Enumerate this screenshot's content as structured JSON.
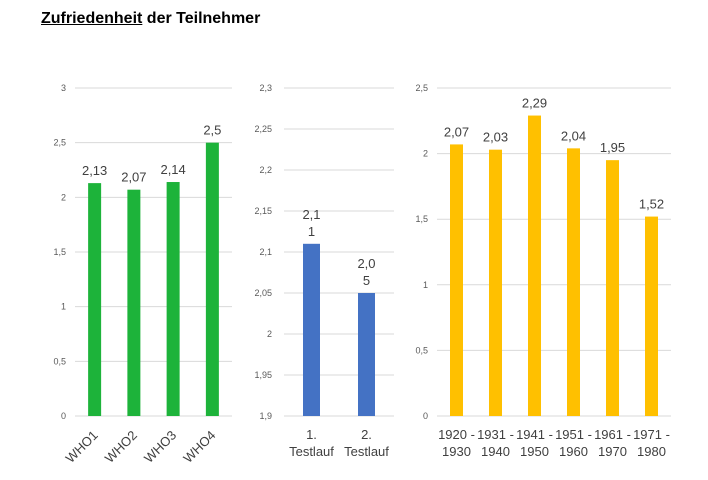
{
  "title": {
    "part1": "Zufriedenheit",
    "part2": " der Teilnehmer"
  },
  "chart_data": [
    {
      "type": "bar",
      "categories": [
        "WHO1",
        "WHO2",
        "WHO3",
        "WHO4"
      ],
      "values": [
        2.13,
        2.07,
        2.14,
        2.5
      ],
      "data_labels": [
        [
          "2,13"
        ],
        [
          "2,07"
        ],
        [
          "2,14"
        ],
        [
          "2,5"
        ]
      ],
      "ylim": [
        0,
        3
      ],
      "yticks": [
        0,
        0.5,
        1,
        1.5,
        2,
        2.5,
        3
      ],
      "ytick_labels": [
        "0",
        "0,5",
        "1",
        "1,5",
        "2",
        "2,5",
        "3"
      ],
      "color": "#1db33a",
      "grid": true,
      "category_rotation": -45
    },
    {
      "type": "bar",
      "categories": [
        [
          "1.",
          "Testlauf"
        ],
        [
          "2.",
          "Testlauf"
        ]
      ],
      "values": [
        2.11,
        2.05
      ],
      "data_labels": [
        [
          "2,1",
          "1"
        ],
        [
          "2,0",
          "5"
        ]
      ],
      "ylim": [
        1.9,
        2.3
      ],
      "yticks": [
        1.9,
        1.95,
        2,
        2.05,
        2.1,
        2.15,
        2.2,
        2.25,
        2.3
      ],
      "ytick_labels": [
        "1,9",
        "1,95",
        "2",
        "2,05",
        "2,1",
        "2,15",
        "2,2",
        "2,25",
        "2,3"
      ],
      "color": "#4472c4",
      "grid": true
    },
    {
      "type": "bar",
      "categories": [
        [
          "1920 -",
          "1930"
        ],
        [
          "1931 -",
          "1940"
        ],
        [
          "1941 -",
          "1950"
        ],
        [
          "1951 -",
          "1960"
        ],
        [
          "1961 -",
          "1970"
        ],
        [
          "1971 -",
          "1980"
        ]
      ],
      "values": [
        2.07,
        2.03,
        2.29,
        2.04,
        1.95,
        1.52
      ],
      "data_labels": [
        [
          "2,07"
        ],
        [
          "2,03"
        ],
        [
          "2,29"
        ],
        [
          "2,04"
        ],
        [
          "1,95"
        ],
        [
          "1,52"
        ]
      ],
      "ylim": [
        0,
        2.5
      ],
      "yticks": [
        0,
        0.5,
        1,
        1.5,
        2,
        2.5
      ],
      "ytick_labels": [
        "0",
        "0,5",
        "1",
        "1,5",
        "2",
        "2,5"
      ],
      "color": "#ffc000",
      "grid": true
    }
  ]
}
